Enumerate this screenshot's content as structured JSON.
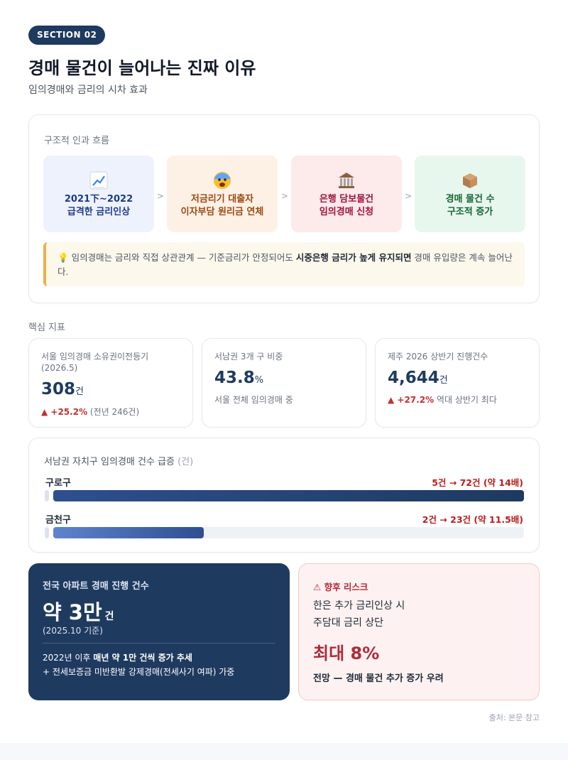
{
  "header": {
    "badge": "SECTION 02",
    "title": "경매 물건이 늘어나는 진짜 이유",
    "subtitle": "임의경매와 금리의 시차 효과"
  },
  "flow": {
    "label": "구조적 인과 흐름",
    "steps": [
      {
        "icon": "chart-up-icon",
        "line1": "2021下~2022",
        "line2": "급격한 금리인상"
      },
      {
        "icon": "fearful-face-icon",
        "line1": "저금리기 대출자",
        "line2": "이자부담 원리금 연체"
      },
      {
        "icon": "bank-icon",
        "line1": "은행 담보물건",
        "line2": "임의경매 신청"
      },
      {
        "icon": "box-icon",
        "line1": "경매 물건 수",
        "line2": "구조적 증가"
      }
    ],
    "arrow": ">",
    "note": {
      "prefix": "임의경매는 금리와 직접 상관관계 — 기준금리가 안정되어도 ",
      "bold": "시중은행 금리가 높게 유지되면",
      "suffix": " 경매 유입량은 계속 늘어난다."
    }
  },
  "metrics": {
    "label": "핵심 지표",
    "items": [
      {
        "label": "서울 임의경매 소유권이전등기 (2026.5)",
        "value": "308",
        "unit": "건",
        "change": "+25.2%",
        "note": "(전년 246건)"
      },
      {
        "label": "서남권 3개 구 비중",
        "value": "43.8",
        "unit": "%",
        "note": "서울 전체 임의경매 중"
      },
      {
        "label": "제주 2026 상반기 진행건수",
        "value": "4,644",
        "unit": "건",
        "change": "+27.2%",
        "note": "역대 상반기 최다"
      }
    ]
  },
  "bars": {
    "title": "서남권 자치구 임의경매 건수 급증",
    "unit": "(건)",
    "max": 72,
    "items": [
      {
        "name": "구로구",
        "from": 5,
        "to": 72,
        "change": "5건 → 72건 (약 14배)"
      },
      {
        "name": "금천구",
        "from": 2,
        "to": 23,
        "change": "2건 → 23건 (약 11.5배)"
      }
    ]
  },
  "national": {
    "label": "전국 아파트 경매 진행 건수",
    "value": "약 3만",
    "unit": "건",
    "basis": "(2025.10 기준)",
    "line1_prefix": "2022년 이후 ",
    "line1_bold": "매년 약 1만 건씩 증가 추세",
    "line2": "+ 전세보증금 미반환발 강제경매(전세사기 여파) 가중"
  },
  "risk": {
    "label": "향후 리스크",
    "line1": "한은 추가 금리인상 시",
    "line2": "주담대 금리 상단",
    "value": "최대 8%",
    "line3": "전망 — 경매 물건 추가 증가 우려"
  },
  "source": "출처: 본문 참고"
}
